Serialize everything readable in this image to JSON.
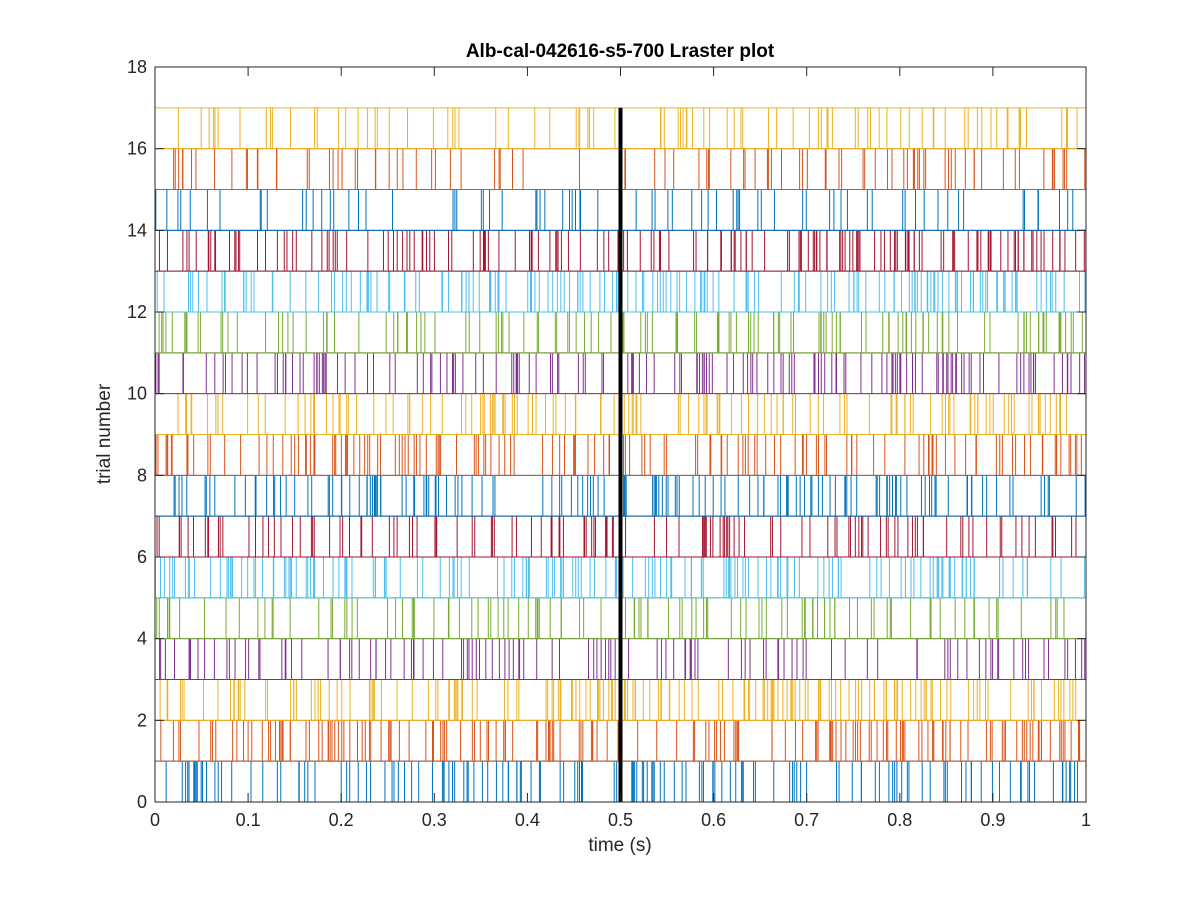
{
  "chart_data": {
    "type": "raster",
    "title": "Alb-cal-042616-s5-700 Lraster plot",
    "xlabel": "time (s)",
    "ylabel": "trial number",
    "xlim": [
      0,
      1
    ],
    "ylim": [
      0,
      18
    ],
    "xticks": [
      0,
      0.1,
      0.2,
      0.3,
      0.4,
      0.5,
      0.6,
      0.7,
      0.8,
      0.9,
      1
    ],
    "xtick_labels": [
      "0",
      "0.1",
      "0.2",
      "0.3",
      "0.4",
      "0.5",
      "0.6",
      "0.7",
      "0.8",
      "0.9",
      "1"
    ],
    "yticks": [
      0,
      2,
      4,
      6,
      8,
      10,
      12,
      14,
      16,
      18
    ],
    "ytick_labels": [
      "0",
      "2",
      "4",
      "6",
      "8",
      "10",
      "12",
      "14",
      "16",
      "18"
    ],
    "grid": false,
    "legend": "none",
    "event_line": {
      "x": 0.5,
      "color": "#000000"
    },
    "colors": [
      "#0072BD",
      "#D95319",
      "#EDB120",
      "#7E2F8E",
      "#77AC30",
      "#4DBEEE",
      "#A2142F"
    ],
    "trials": [
      {
        "trial": 1,
        "color": "#0072BD",
        "density": 150,
        "spike_times": []
      },
      {
        "trial": 2,
        "color": "#D95319",
        "density": 170,
        "spike_times": []
      },
      {
        "trial": 3,
        "color": "#EDB120",
        "density": 170,
        "spike_times": []
      },
      {
        "trial": 4,
        "color": "#7E2F8E",
        "density": 120,
        "spike_times": []
      },
      {
        "trial": 5,
        "color": "#77AC30",
        "density": 110,
        "spike_times": []
      },
      {
        "trial": 6,
        "color": "#4DBEEE",
        "density": 170,
        "spike_times": []
      },
      {
        "trial": 7,
        "color": "#A2142F",
        "density": 130,
        "spike_times": []
      },
      {
        "trial": 8,
        "color": "#0072BD",
        "density": 150,
        "spike_times": []
      },
      {
        "trial": 9,
        "color": "#D95319",
        "density": 150,
        "spike_times": []
      },
      {
        "trial": 10,
        "color": "#EDB120",
        "density": 140,
        "spike_times": []
      },
      {
        "trial": 11,
        "color": "#7E2F8E",
        "density": 160,
        "spike_times": []
      },
      {
        "trial": 12,
        "color": "#77AC30",
        "density": 130,
        "spike_times": []
      },
      {
        "trial": 13,
        "color": "#4DBEEE",
        "density": 170,
        "spike_times": []
      },
      {
        "trial": 14,
        "color": "#A2142F",
        "density": 170,
        "spike_times": []
      },
      {
        "trial": 15,
        "color": "#0072BD",
        "density": 80,
        "spike_times": []
      },
      {
        "trial": 16,
        "color": "#D95319",
        "density": 100,
        "spike_times": []
      },
      {
        "trial": 17,
        "color": "#EDB120",
        "density": 90,
        "spike_times": []
      }
    ]
  }
}
